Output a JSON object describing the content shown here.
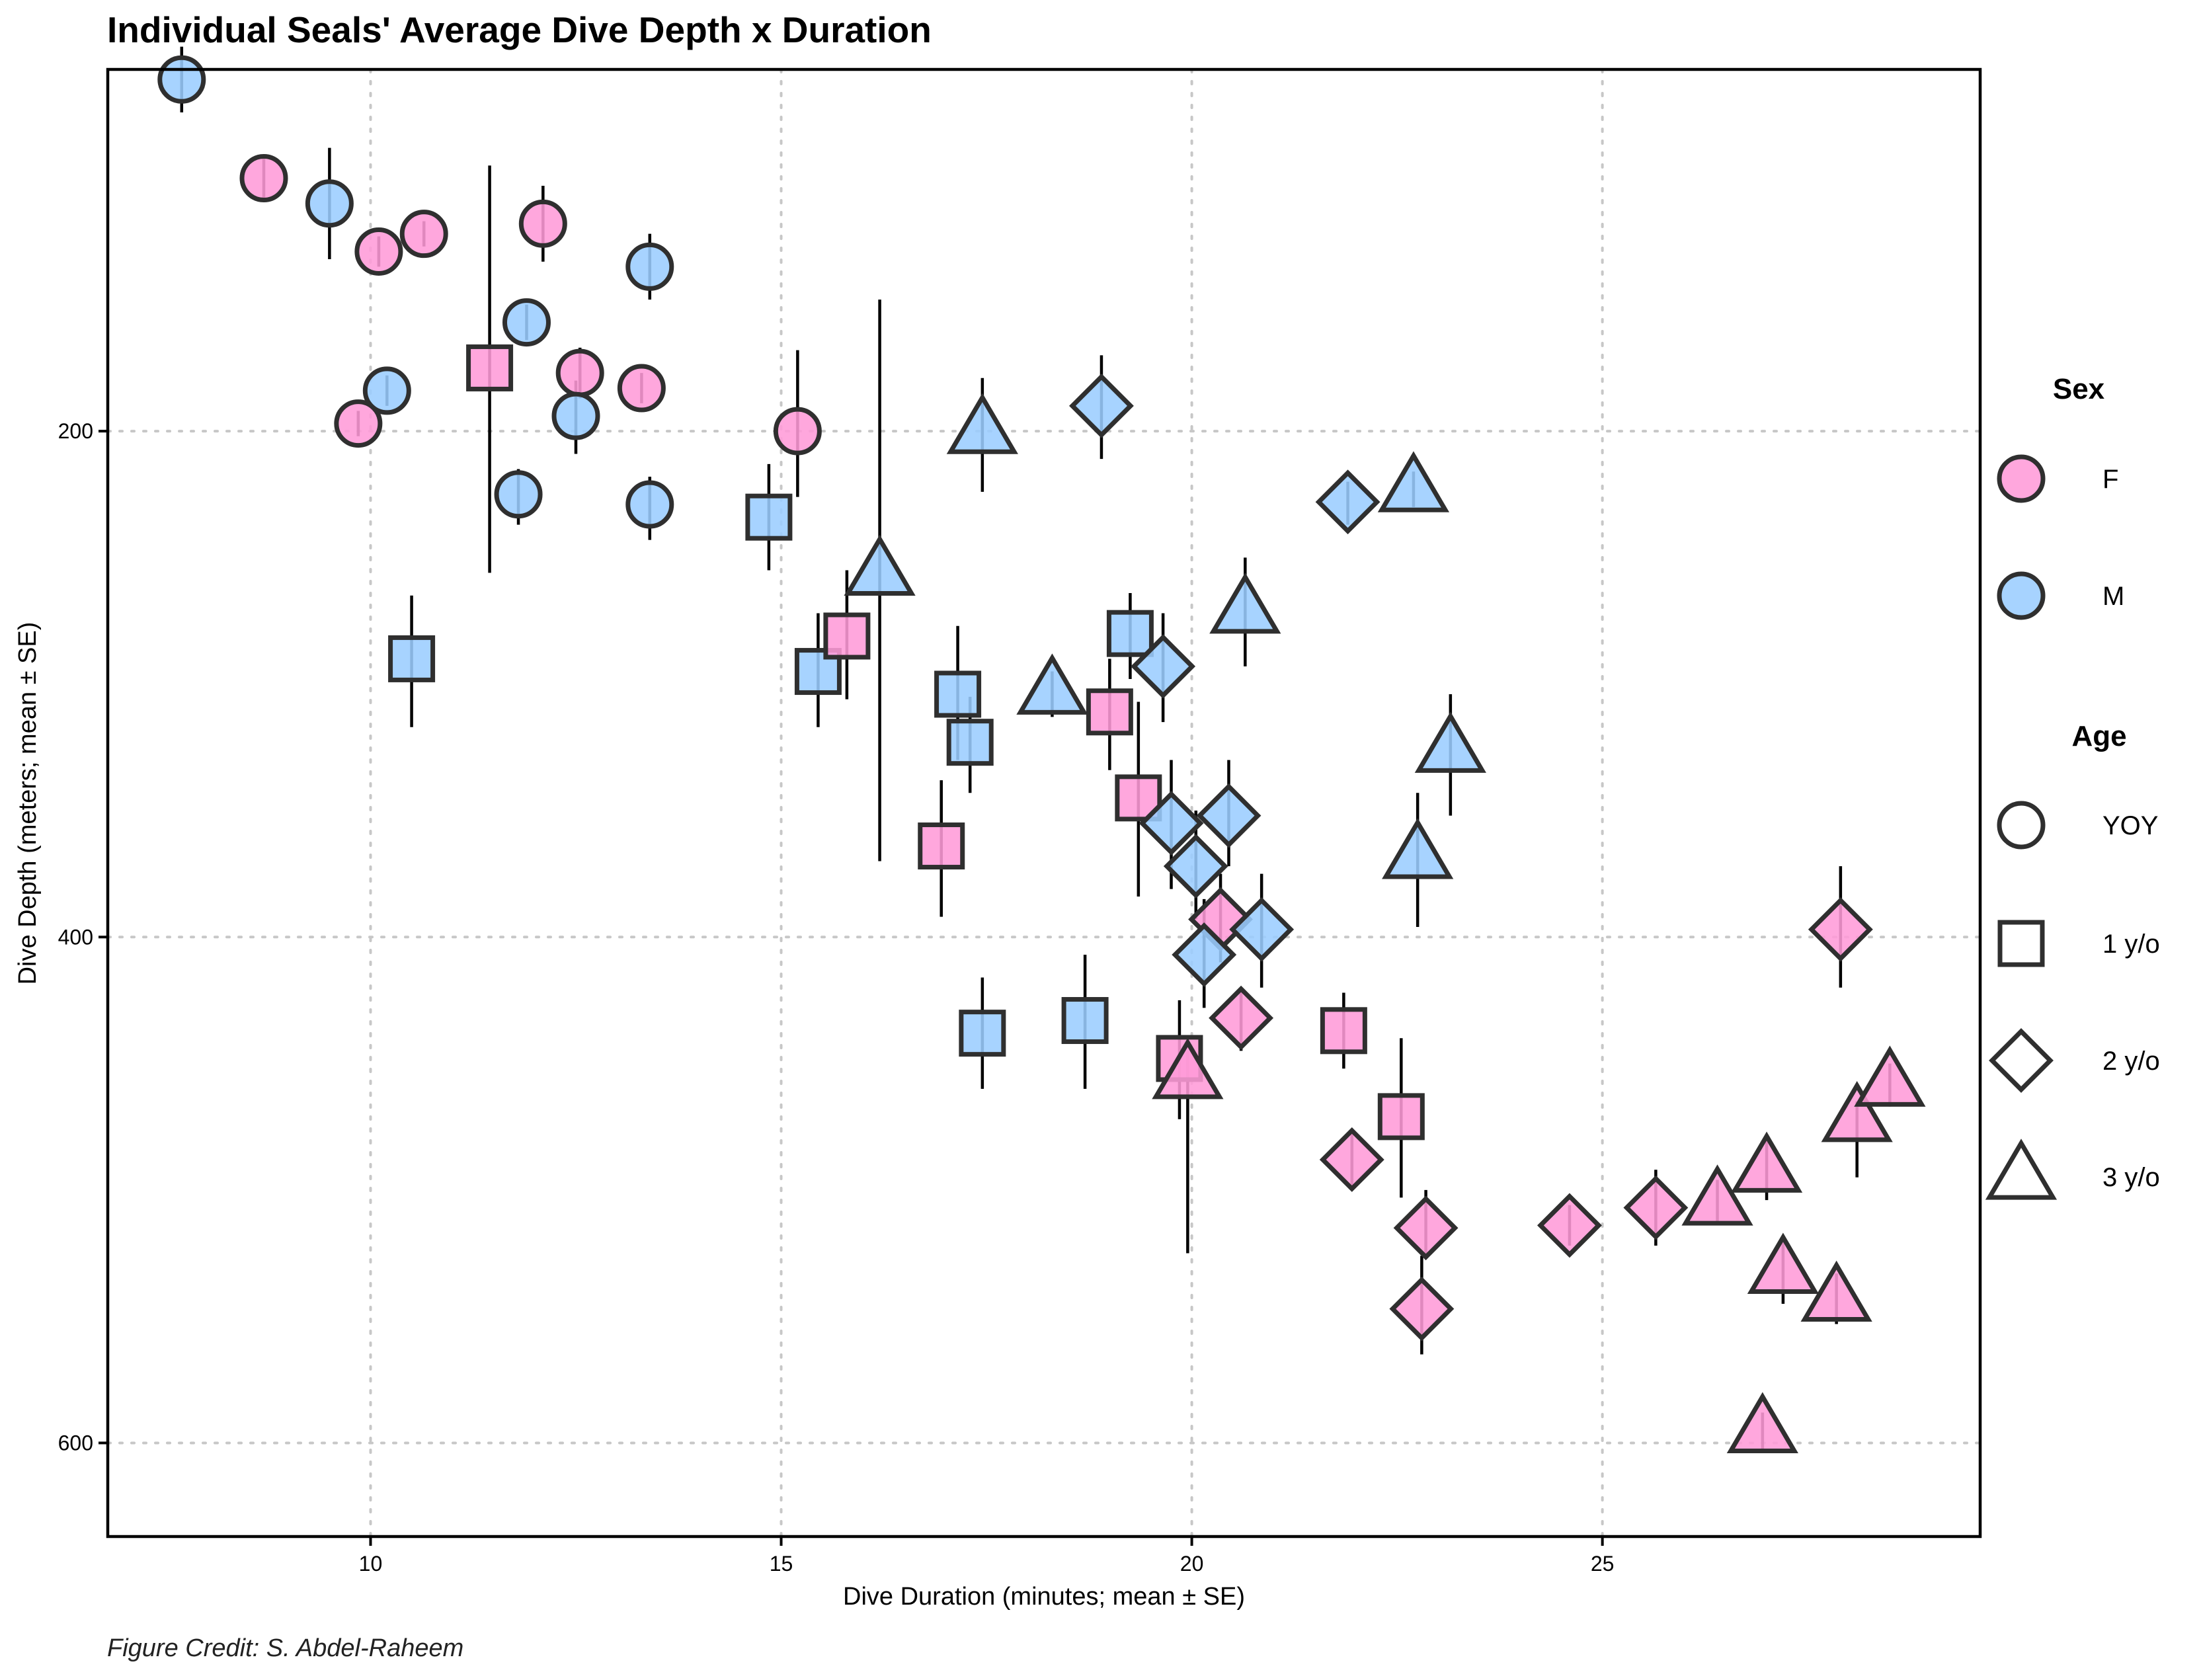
{
  "colors": {
    "F": "#ff9bd8",
    "M": "#9bcdff",
    "outline": "#2f2f2f"
  },
  "legend": {
    "sex_title": "Sex",
    "sex_items": [
      {
        "key": "F",
        "label": "F"
      },
      {
        "key": "M",
        "label": "M"
      }
    ],
    "age_title": "Age",
    "age_items": [
      {
        "key": "YOY",
        "label": "YOY",
        "shape": "circle"
      },
      {
        "key": "1",
        "label": "1 y/o",
        "shape": "square"
      },
      {
        "key": "2",
        "label": "2 y/o",
        "shape": "diamond"
      },
      {
        "key": "3",
        "label": "3 y/o",
        "shape": "triangle"
      }
    ]
  },
  "caption": "Figure Credit: S. Abdel-Raheem",
  "chart_data": {
    "type": "scatter",
    "title": "Individual Seals' Average Dive Depth x Duration",
    "xlabel": "Dive Duration (minutes; mean ± SE)",
    "ylabel": "Dive Depth (meters; mean ± SE)",
    "xlim": [
      6.8,
      29.6
    ],
    "ylim": [
      637,
      57
    ],
    "y_reversed": true,
    "xticks": [
      10,
      15,
      20,
      25
    ],
    "yticks": [
      200,
      400,
      600
    ],
    "grid": true,
    "legend_position": "right",
    "points": [
      {
        "x": 7.7,
        "y": 61,
        "sex": "M",
        "age": "YOY",
        "ylo": 48,
        "yhi": 74
      },
      {
        "x": 8.7,
        "y": 100,
        "sex": "F",
        "age": "YOY",
        "ylo": 92,
        "yhi": 108
      },
      {
        "x": 9.5,
        "y": 110,
        "sex": "M",
        "age": "YOY",
        "ylo": 88,
        "yhi": 132
      },
      {
        "x": 10.1,
        "y": 129,
        "sex": "F",
        "age": "YOY",
        "ylo": 123,
        "yhi": 135
      },
      {
        "x": 10.65,
        "y": 122,
        "sex": "F",
        "age": "YOY",
        "ylo": 117,
        "yhi": 127
      },
      {
        "x": 12.1,
        "y": 118,
        "sex": "F",
        "age": "YOY",
        "ylo": 103,
        "yhi": 133
      },
      {
        "x": 13.4,
        "y": 135,
        "sex": "M",
        "age": "YOY",
        "ylo": 122,
        "yhi": 148
      },
      {
        "x": 11.9,
        "y": 157,
        "sex": "M",
        "age": "YOY",
        "ylo": 150,
        "yhi": 164
      },
      {
        "x": 10.2,
        "y": 184,
        "sex": "M",
        "age": "YOY",
        "ylo": 178,
        "yhi": 190
      },
      {
        "x": 9.85,
        "y": 197,
        "sex": "F",
        "age": "YOY",
        "ylo": 192,
        "yhi": 202
      },
      {
        "x": 12.55,
        "y": 177,
        "sex": "F",
        "age": "YOY",
        "ylo": 167,
        "yhi": 187
      },
      {
        "x": 12.5,
        "y": 194,
        "sex": "M",
        "age": "YOY",
        "ylo": 180,
        "yhi": 209
      },
      {
        "x": 13.3,
        "y": 183,
        "sex": "F",
        "age": "YOY",
        "ylo": 177,
        "yhi": 189
      },
      {
        "x": 15.2,
        "y": 200,
        "sex": "F",
        "age": "YOY",
        "ylo": 168,
        "yhi": 226
      },
      {
        "x": 11.8,
        "y": 225,
        "sex": "M",
        "age": "YOY",
        "ylo": 215,
        "yhi": 237
      },
      {
        "x": 13.4,
        "y": 229,
        "sex": "M",
        "age": "YOY",
        "ylo": 218,
        "yhi": 243
      },
      {
        "x": 11.45,
        "y": 175,
        "sex": "F",
        "age": "1",
        "ylo": 95,
        "yhi": 256
      },
      {
        "x": 10.5,
        "y": 290,
        "sex": "M",
        "age": "1",
        "ylo": 265,
        "yhi": 317
      },
      {
        "x": 14.85,
        "y": 234,
        "sex": "M",
        "age": "1",
        "ylo": 213,
        "yhi": 255
      },
      {
        "x": 15.45,
        "y": 295,
        "sex": "M",
        "age": "1",
        "ylo": 272,
        "yhi": 317
      },
      {
        "x": 15.8,
        "y": 281,
        "sex": "F",
        "age": "1",
        "ylo": 255,
        "yhi": 306
      },
      {
        "x": 17.15,
        "y": 304,
        "sex": "M",
        "age": "1",
        "ylo": 277,
        "yhi": 330
      },
      {
        "x": 17.3,
        "y": 323,
        "sex": "M",
        "age": "1",
        "ylo": 305,
        "yhi": 343
      },
      {
        "x": 16.95,
        "y": 364,
        "sex": "F",
        "age": "1",
        "ylo": 338,
        "yhi": 392
      },
      {
        "x": 19.25,
        "y": 280,
        "sex": "M",
        "age": "1",
        "ylo": 264,
        "yhi": 298
      },
      {
        "x": 19.0,
        "y": 311,
        "sex": "F",
        "age": "1",
        "ylo": 290,
        "yhi": 334
      },
      {
        "x": 19.35,
        "y": 345,
        "sex": "F",
        "age": "1",
        "ylo": 307,
        "yhi": 384
      },
      {
        "x": 17.45,
        "y": 438,
        "sex": "M",
        "age": "1",
        "ylo": 416,
        "yhi": 460
      },
      {
        "x": 18.7,
        "y": 433,
        "sex": "M",
        "age": "1",
        "ylo": 407,
        "yhi": 460
      },
      {
        "x": 19.85,
        "y": 448,
        "sex": "F",
        "age": "1",
        "ylo": 425,
        "yhi": 472
      },
      {
        "x": 21.85,
        "y": 437,
        "sex": "F",
        "age": "1",
        "ylo": 422,
        "yhi": 452
      },
      {
        "x": 22.55,
        "y": 471,
        "sex": "F",
        "age": "1",
        "ylo": 440,
        "yhi": 503
      },
      {
        "x": 18.9,
        "y": 190,
        "sex": "M",
        "age": "2",
        "ylo": 170,
        "yhi": 211
      },
      {
        "x": 19.65,
        "y": 293,
        "sex": "M",
        "age": "2",
        "ylo": 272,
        "yhi": 315
      },
      {
        "x": 19.75,
        "y": 355,
        "sex": "M",
        "age": "2",
        "ylo": 330,
        "yhi": 381
      },
      {
        "x": 20.45,
        "y": 352,
        "sex": "M",
        "age": "2",
        "ylo": 330,
        "yhi": 372
      },
      {
        "x": 20.05,
        "y": 372,
        "sex": "M",
        "age": "2",
        "ylo": 350,
        "yhi": 393
      },
      {
        "x": 20.35,
        "y": 393,
        "sex": "F",
        "age": "2",
        "ylo": 375,
        "yhi": 410
      },
      {
        "x": 20.85,
        "y": 397,
        "sex": "M",
        "age": "2",
        "ylo": 375,
        "yhi": 420
      },
      {
        "x": 20.15,
        "y": 407,
        "sex": "M",
        "age": "2",
        "ylo": 385,
        "yhi": 428
      },
      {
        "x": 20.6,
        "y": 432,
        "sex": "F",
        "age": "2",
        "ylo": 420,
        "yhi": 445
      },
      {
        "x": 21.9,
        "y": 228,
        "sex": "M",
        "age": "2",
        "ylo": 220,
        "yhi": 237
      },
      {
        "x": 21.95,
        "y": 488,
        "sex": "F",
        "age": "2",
        "ylo": 476,
        "yhi": 500
      },
      {
        "x": 22.85,
        "y": 515,
        "sex": "F",
        "age": "2",
        "ylo": 500,
        "yhi": 527
      },
      {
        "x": 22.8,
        "y": 547,
        "sex": "F",
        "age": "2",
        "ylo": 526,
        "yhi": 565
      },
      {
        "x": 24.6,
        "y": 514,
        "sex": "F",
        "age": "2",
        "ylo": 506,
        "yhi": 522
      },
      {
        "x": 25.65,
        "y": 507,
        "sex": "F",
        "age": "2",
        "ylo": 492,
        "yhi": 522
      },
      {
        "x": 27.9,
        "y": 397,
        "sex": "F",
        "age": "2",
        "ylo": 372,
        "yhi": 420
      },
      {
        "x": 17.45,
        "y": 200,
        "sex": "M",
        "age": "3",
        "ylo": 179,
        "yhi": 224
      },
      {
        "x": 16.2,
        "y": 256,
        "sex": "M",
        "age": "3",
        "ylo": 148,
        "yhi": 370
      },
      {
        "x": 18.3,
        "y": 303,
        "sex": "M",
        "age": "3",
        "ylo": 295,
        "yhi": 313
      },
      {
        "x": 20.65,
        "y": 271,
        "sex": "M",
        "age": "3",
        "ylo": 250,
        "yhi": 293
      },
      {
        "x": 22.7,
        "y": 223,
        "sex": "M",
        "age": "3",
        "ylo": 216,
        "yhi": 230
      },
      {
        "x": 23.15,
        "y": 326,
        "sex": "M",
        "age": "3",
        "ylo": 304,
        "yhi": 352
      },
      {
        "x": 22.75,
        "y": 368,
        "sex": "M",
        "age": "3",
        "ylo": 343,
        "yhi": 396
      },
      {
        "x": 19.95,
        "y": 455,
        "sex": "F",
        "age": "3",
        "ylo": 445,
        "yhi": 525
      },
      {
        "x": 26.4,
        "y": 505,
        "sex": "F",
        "age": "3",
        "ylo": 496,
        "yhi": 514
      },
      {
        "x": 27.0,
        "y": 492,
        "sex": "F",
        "age": "3",
        "ylo": 480,
        "yhi": 504
      },
      {
        "x": 27.2,
        "y": 532,
        "sex": "F",
        "age": "3",
        "ylo": 520,
        "yhi": 545
      },
      {
        "x": 28.1,
        "y": 472,
        "sex": "F",
        "age": "3",
        "ylo": 465,
        "yhi": 495
      },
      {
        "x": 28.5,
        "y": 458,
        "sex": "F",
        "age": "3",
        "ylo": 450,
        "yhi": 467
      },
      {
        "x": 27.85,
        "y": 543,
        "sex": "F",
        "age": "3",
        "ylo": 533,
        "yhi": 553
      },
      {
        "x": 26.95,
        "y": 595,
        "sex": "F",
        "age": "3",
        "ylo": 588,
        "yhi": 604
      }
    ]
  }
}
